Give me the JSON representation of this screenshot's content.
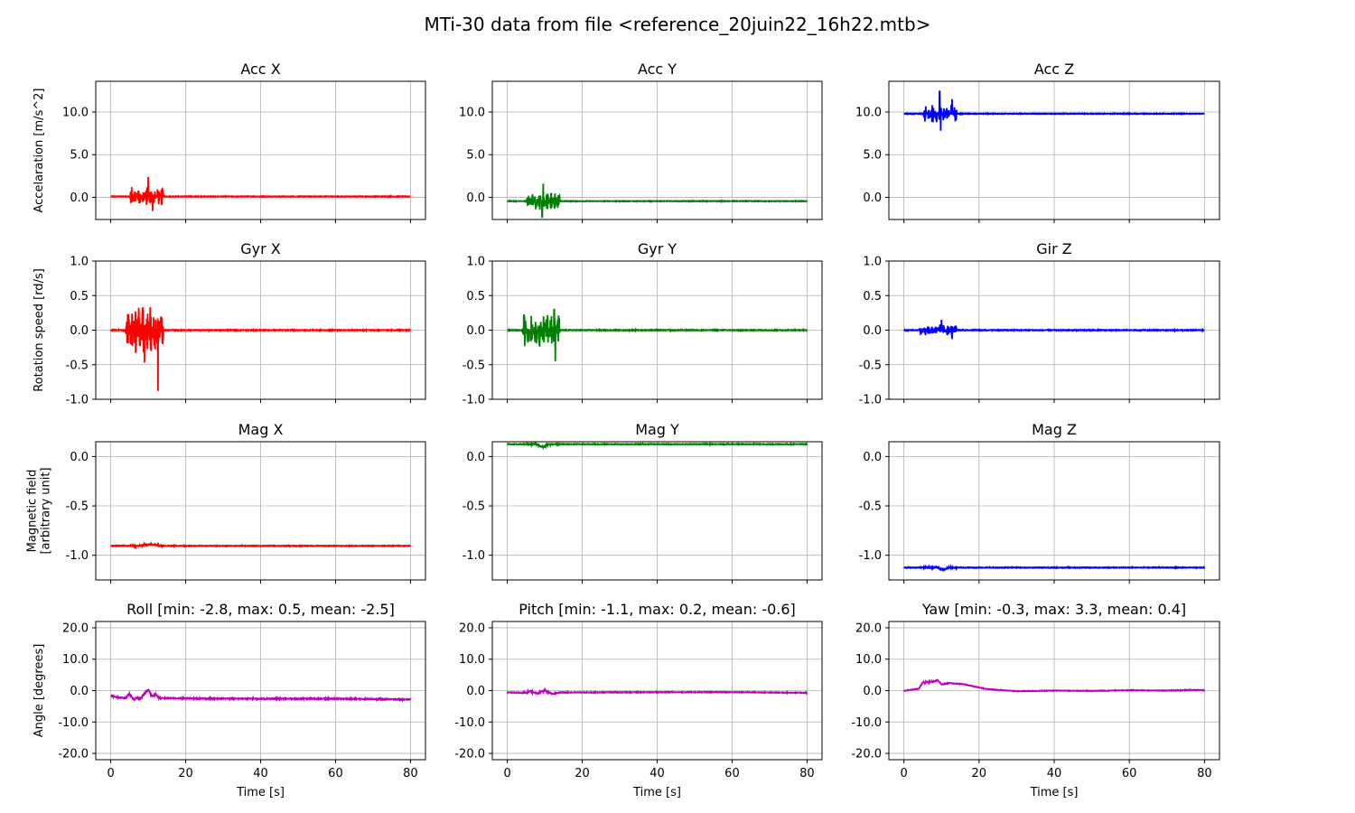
{
  "figure": {
    "suptitle": "MTi-30 data from file <reference_20juin22_16h22.mtb>",
    "xlabel": "Time [s]",
    "row_ylabels": [
      [
        "Accelaration [m/s^2]"
      ],
      [
        "Rotation speed [rd/s]"
      ],
      [
        "Magnetic field",
        "[arbitrary unit]"
      ],
      [
        "Angle [degrees]"
      ]
    ]
  },
  "chart_data": [
    {
      "type": "line",
      "title": "Acc X",
      "color": "#ff0000",
      "xlim": [
        -4,
        84
      ],
      "ylim": [
        -2.6,
        13.6
      ],
      "yticks": [
        0,
        5,
        10
      ],
      "ytick_labels": [
        "0.0",
        "5.0",
        "10.0"
      ],
      "xticks": [
        0,
        20,
        40,
        60,
        80
      ],
      "grid": true,
      "baseline": 0.1,
      "noise": 0.03,
      "bursts": [
        [
          5,
          14,
          1.1
        ]
      ],
      "spikes": [
        [
          10,
          2.4
        ],
        [
          11.2,
          -1.6
        ]
      ],
      "drift": []
    },
    {
      "type": "line",
      "title": "Acc Y",
      "color": "#008000",
      "xlim": [
        -4,
        84
      ],
      "ylim": [
        -2.6,
        13.6
      ],
      "yticks": [
        0,
        5,
        10
      ],
      "ytick_labels": [
        "0.0",
        "5.0",
        "10.0"
      ],
      "xticks": [
        0,
        20,
        40,
        60,
        80
      ],
      "grid": true,
      "baseline": -0.45,
      "noise": 0.03,
      "bursts": [
        [
          5,
          14,
          1.0
        ]
      ],
      "spikes": [
        [
          9.3,
          -2.3
        ],
        [
          9.6,
          1.6
        ]
      ],
      "drift": []
    },
    {
      "type": "line",
      "title": "Acc Z",
      "color": "#0000ff",
      "xlim": [
        -4,
        84
      ],
      "ylim": [
        -2.6,
        13.6
      ],
      "yticks": [
        0,
        5,
        10
      ],
      "ytick_labels": [
        "0.0",
        "5.0",
        "10.0"
      ],
      "xticks": [
        0,
        20,
        40,
        60,
        80
      ],
      "grid": true,
      "baseline": 9.8,
      "noise": 0.03,
      "bursts": [
        [
          5,
          14,
          1.1
        ]
      ],
      "spikes": [
        [
          9.5,
          12.4
        ],
        [
          9.8,
          7.8
        ],
        [
          12.8,
          11.5
        ]
      ],
      "drift": []
    },
    {
      "type": "line",
      "title": "Gyr X",
      "color": "#ff0000",
      "xlim": [
        -4,
        84
      ],
      "ylim": [
        -1.0,
        1.0
      ],
      "yticks": [
        -1,
        -0.5,
        0,
        0.5,
        1
      ],
      "ytick_labels": [
        "-1.0",
        "-0.5",
        "0.0",
        "0.5",
        "1.0"
      ],
      "xticks": [
        0,
        20,
        40,
        60,
        80
      ],
      "grid": true,
      "baseline": 0.0,
      "noise": 0.005,
      "bursts": [
        [
          4,
          14,
          0.35
        ]
      ],
      "spikes": [
        [
          12.6,
          -0.88
        ],
        [
          8.5,
          0.32
        ],
        [
          9,
          -0.47
        ]
      ],
      "drift": []
    },
    {
      "type": "line",
      "title": "Gyr Y",
      "color": "#008000",
      "xlim": [
        -4,
        84
      ],
      "ylim": [
        -1.0,
        1.0
      ],
      "yticks": [
        -1,
        -0.5,
        0,
        0.5,
        1
      ],
      "ytick_labels": [
        "-1.0",
        "-0.5",
        "0.0",
        "0.5",
        "1.0"
      ],
      "xticks": [
        0,
        20,
        40,
        60,
        80
      ],
      "grid": true,
      "baseline": 0.0,
      "noise": 0.005,
      "bursts": [
        [
          4,
          14,
          0.25
        ]
      ],
      "spikes": [
        [
          12.5,
          0.3
        ],
        [
          12.8,
          -0.45
        ]
      ],
      "drift": []
    },
    {
      "type": "line",
      "title": "Gir Z",
      "color": "#0000ff",
      "xlim": [
        -4,
        84
      ],
      "ylim": [
        -1.0,
        1.0
      ],
      "yticks": [
        -1,
        -0.5,
        0,
        0.5,
        1
      ],
      "ytick_labels": [
        "-1.0",
        "-0.5",
        "0.0",
        "0.5",
        "1.0"
      ],
      "xticks": [
        0,
        20,
        40,
        60,
        80
      ],
      "grid": true,
      "baseline": 0.0,
      "noise": 0.005,
      "bursts": [
        [
          4,
          14,
          0.08
        ]
      ],
      "spikes": [
        [
          10,
          0.15
        ],
        [
          12.8,
          -0.13
        ]
      ],
      "drift": []
    },
    {
      "type": "line",
      "title": "Mag X",
      "color": "#ff0000",
      "xlim": [
        -4,
        84
      ],
      "ylim": [
        -1.25,
        0.15
      ],
      "yticks": [
        -1,
        -0.5,
        0
      ],
      "ytick_labels": [
        "-1.0",
        "-0.5",
        "0.0"
      ],
      "xticks": [
        0,
        20,
        40,
        60,
        80
      ],
      "grid": true,
      "baseline": -0.905,
      "noise": 0.003,
      "bursts": [
        [
          5,
          14,
          0.01
        ]
      ],
      "spikes": [],
      "drift": [
        [
          8,
          13,
          0.015
        ]
      ]
    },
    {
      "type": "line",
      "title": "Mag Y",
      "color": "#008000",
      "xlim": [
        -4,
        84
      ],
      "ylim": [
        -1.25,
        0.15
      ],
      "yticks": [
        -1,
        -0.5,
        0
      ],
      "ytick_labels": [
        "-1.0",
        "-0.5",
        "0.0"
      ],
      "xticks": [
        0,
        20,
        40,
        60,
        80
      ],
      "grid": true,
      "baseline": 0.125,
      "noise": 0.003,
      "bursts": [
        [
          5,
          14,
          0.01
        ]
      ],
      "spikes": [],
      "drift": [
        [
          8,
          11,
          -0.025
        ]
      ]
    },
    {
      "type": "line",
      "title": "Mag Z",
      "color": "#0000ff",
      "xlim": [
        -4,
        84
      ],
      "ylim": [
        -1.25,
        0.15
      ],
      "yticks": [
        -1,
        -0.5,
        0
      ],
      "ytick_labels": [
        "-1.0",
        "-0.5",
        "0.0"
      ],
      "xticks": [
        0,
        20,
        40,
        60,
        80
      ],
      "grid": true,
      "baseline": -1.125,
      "noise": 0.003,
      "bursts": [
        [
          5,
          14,
          0.01
        ]
      ],
      "spikes": [],
      "drift": [
        [
          9,
          12,
          -0.02
        ]
      ]
    },
    {
      "type": "line",
      "title": "Roll [min: -2.8, max: 0.5, mean: -2.5]",
      "color": "#bf00bf",
      "xlim": [
        -4,
        84
      ],
      "ylim": [
        -22,
        22
      ],
      "yticks": [
        -20,
        -10,
        0,
        10,
        20
      ],
      "ytick_labels": [
        "-20.0",
        "-10.0",
        "0.0",
        "10.0",
        "20.0"
      ],
      "xticks": [
        0,
        20,
        40,
        60,
        80
      ],
      "grid": true,
      "profile": [
        [
          0,
          -1.6
        ],
        [
          2,
          -2.2
        ],
        [
          4,
          -2.4
        ],
        [
          5,
          -1.0
        ],
        [
          6,
          -2.6
        ],
        [
          8,
          -2.4
        ],
        [
          10,
          0.4
        ],
        [
          11,
          -1.8
        ],
        [
          12,
          -1.2
        ],
        [
          13,
          -2.4
        ],
        [
          20,
          -2.5
        ],
        [
          40,
          -2.6
        ],
        [
          60,
          -2.6
        ],
        [
          80,
          -2.8
        ]
      ],
      "noise": 0.15,
      "bursts": [
        [
          4,
          13,
          0.4
        ]
      ]
    },
    {
      "type": "line",
      "title": "Pitch [min: -1.1, max: 0.2, mean: -0.6]",
      "color": "#bf00bf",
      "xlim": [
        -4,
        84
      ],
      "ylim": [
        -22,
        22
      ],
      "yticks": [
        -20,
        -10,
        0,
        10,
        20
      ],
      "ytick_labels": [
        "-20.0",
        "-10.0",
        "0.0",
        "10.0",
        "20.0"
      ],
      "xticks": [
        0,
        20,
        40,
        60,
        80
      ],
      "grid": true,
      "profile": [
        [
          0,
          -0.6
        ],
        [
          5,
          -0.7
        ],
        [
          6,
          -0.2
        ],
        [
          8,
          -0.9
        ],
        [
          10,
          0.2
        ],
        [
          12,
          -1.1
        ],
        [
          14,
          -0.6
        ],
        [
          40,
          -0.5
        ],
        [
          60,
          -0.5
        ],
        [
          80,
          -0.7
        ]
      ],
      "noise": 0.1,
      "bursts": [
        [
          4,
          13,
          0.3
        ]
      ]
    },
    {
      "type": "line",
      "title": "Yaw [min: -0.3, max: 3.3, mean: 0.4]",
      "color": "#bf00bf",
      "xlim": [
        -4,
        84
      ],
      "ylim": [
        -22,
        22
      ],
      "yticks": [
        -20,
        -10,
        0,
        10,
        20
      ],
      "ytick_labels": [
        "-20.0",
        "-10.0",
        "0.0",
        "10.0",
        "20.0"
      ],
      "xticks": [
        0,
        20,
        40,
        60,
        80
      ],
      "grid": true,
      "profile": [
        [
          0,
          -0.1
        ],
        [
          4,
          0.6
        ],
        [
          5,
          2.6
        ],
        [
          8,
          2.9
        ],
        [
          9,
          3.3
        ],
        [
          10,
          2.0
        ],
        [
          12,
          2.4
        ],
        [
          16,
          2.0
        ],
        [
          22,
          0.5
        ],
        [
          30,
          -0.2
        ],
        [
          40,
          0.0
        ],
        [
          50,
          -0.1
        ],
        [
          60,
          0.1
        ],
        [
          70,
          0.0
        ],
        [
          78,
          0.2
        ],
        [
          80,
          0.1
        ]
      ],
      "noise": 0.08,
      "bursts": [
        [
          5,
          12,
          0.2
        ]
      ]
    }
  ]
}
